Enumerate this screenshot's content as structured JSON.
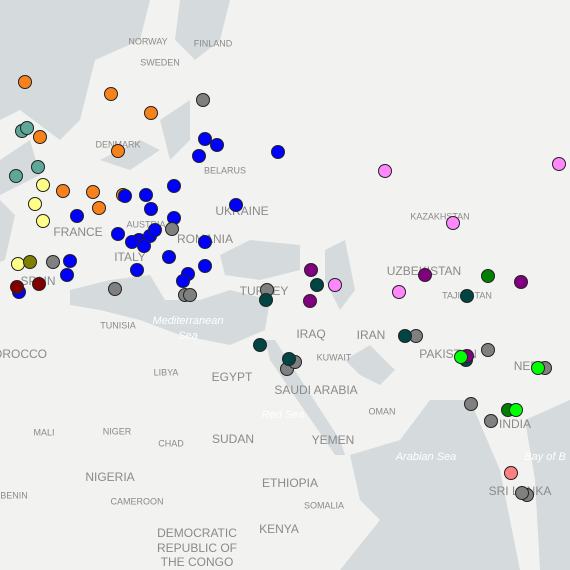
{
  "map": {
    "labels": [
      "NORWAY",
      "FINLAND",
      "SWEDEN",
      "DENMARK",
      "BELARUS",
      "UKRAINE",
      "FRANCE",
      "AUSTRIA",
      "ROMANIA",
      "ITALY",
      "SPAIN",
      "TUNISIA",
      "Mediterranean",
      "Sea",
      "TURKEY",
      "IRAQ",
      "KUWAIT",
      "IRAN",
      "SAUDI ARABIA",
      "Red Sea",
      "EGYPT",
      "LIBYA",
      "OROCCO",
      "MALI",
      "NIGER",
      "CHAD",
      "SUDAN",
      "YEMEN",
      "OMAN",
      "ETHIOPIA",
      "SOMALIA",
      "NIGERIA",
      "CAMEROON",
      "KENYA",
      "DEMOCRATIC",
      "REPUBLIC OF",
      "THE CONGO",
      "KAZAKHSTAN",
      "UZBEKISTAN",
      "TAJIKISTAN",
      "PAKISTAN",
      "INDIA",
      "NEPAL",
      "SRI LANKA",
      "Arabian Sea",
      "Bay of B",
      "BENIN"
    ]
  }
}
